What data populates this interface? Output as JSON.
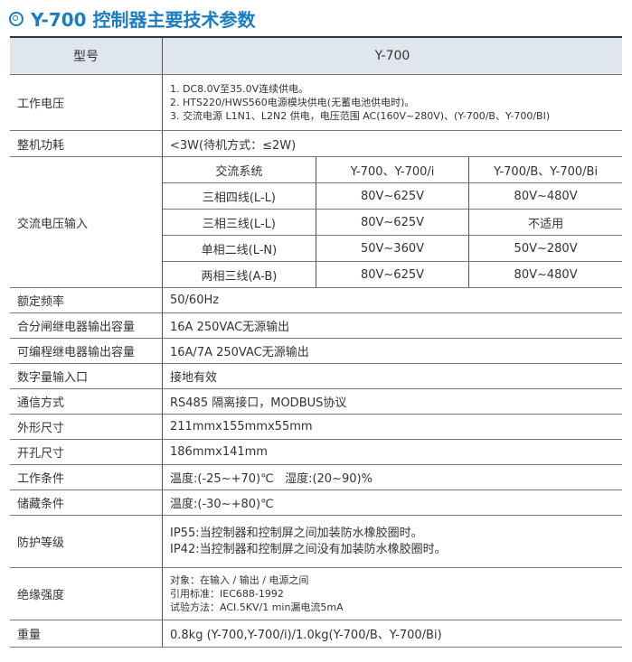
{
  "title": "Y-700 控制器主要技术参数",
  "header": {
    "label": "型号",
    "value": "Y-700"
  },
  "rows": {
    "voltage": {
      "label": "工作电压",
      "lines": [
        "1. DC8.0V至35.0V连续供电。",
        "2. HTS220/HWS560电源模块供电(无蓄电池供电时)。",
        "3. 交流电源 L1N1、L2N2 供电，电压范围 AC(160V~280V)、(Y-700/B、Y-700/BI)"
      ]
    },
    "power": {
      "label": "整机功耗",
      "value": "<3W(待机方式：≤2W)"
    },
    "ac": {
      "label": "交流电压输入",
      "columns": [
        "交流系统",
        "Y-700、Y-700/i",
        "Y-700/B、Y-700/Bi"
      ],
      "rows": [
        [
          "三相四线(L-L)",
          "80V~625V",
          "80V~480V"
        ],
        [
          "三相三线(L-L)",
          "80V~625V",
          "不适用"
        ],
        [
          "单相二线(L-N)",
          "50V~360V",
          "50V~280V"
        ],
        [
          "两相三线(A-B)",
          "80V~625V",
          "80V~480V"
        ]
      ]
    },
    "freq": {
      "label": "额定频率",
      "value": "50/60Hz"
    },
    "relay1": {
      "label": "合分闸继电器输出容量",
      "value": "16A  250VAC无源输出"
    },
    "relay2": {
      "label": "可编程继电器输出容量",
      "value": "16A/7A  250VAC无源输出"
    },
    "digital": {
      "label": "数字量输入口",
      "value": "接地有效"
    },
    "comm": {
      "label": "通信方式",
      "value": "RS485 隔离接口，MODBUS协议"
    },
    "size": {
      "label": "外形尺寸",
      "value": "211mmx155mmx55mm"
    },
    "cutout": {
      "label": "开孔尺寸",
      "value": "186mmx141mm"
    },
    "work": {
      "label": "工作条件",
      "value": "温度:(-25~+70)℃   湿度:(20~90)%"
    },
    "storage": {
      "label": "储藏条件",
      "value": "温度:(-30~+80)℃"
    },
    "protect": {
      "label": "防护等级",
      "lines": [
        "IP55:当控制器和控制屏之间加装防水橡胶圈时。",
        "IP42:当控制器和控制屏之间没有加装防水橡胶圈时。"
      ]
    },
    "insul": {
      "label": "绝缘强度",
      "lines": [
        "对象：在输入 / 输出 / 电源之间",
        "引用标准：IEC688-1992",
        "试验方法：ACI.5KV/1 min漏电流5mA"
      ]
    },
    "weight": {
      "label": "重量",
      "value": "0.8kg (Y-700,Y-700/i)/1.0kg(Y-700/B、Y-700/Bi)"
    }
  },
  "colors": {
    "title": "#1a7dc4",
    "header_bg": "#dfe6ec"
  }
}
